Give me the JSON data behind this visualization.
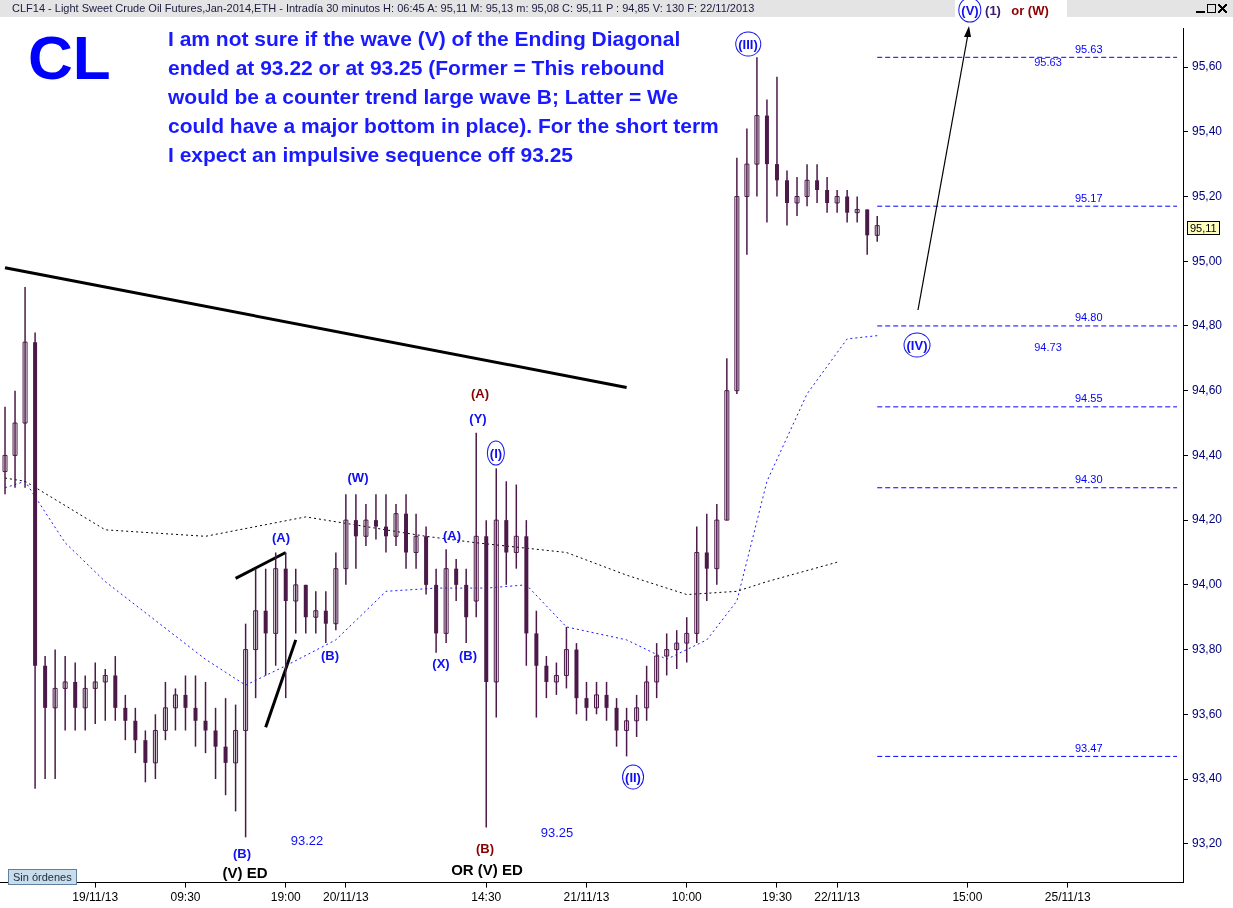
{
  "chart_data": {
    "type": "candlestick",
    "title": "CLF14 - Light Sweet Crude Oil Futures,Jan-2014,ETH - Intradía 30 minutos  H: 06:45  A: 95,11  M: 95,13  m: 95,08  C: 95,11  P : 94,85  V: 130  F: 22/11/2013",
    "color": "#4b1a48",
    "categories": [
      null,
      null,
      null,
      null,
      null,
      null,
      null,
      null,
      null,
      "19/11/13",
      null,
      null,
      null,
      null,
      null,
      null,
      null,
      null,
      "09:30",
      null,
      null,
      null,
      null,
      null,
      null,
      null,
      null,
      null,
      "19:00",
      null,
      null,
      null,
      null,
      null,
      "20/11/13",
      null,
      null,
      null,
      null,
      null,
      null,
      null,
      null,
      null,
      null,
      null,
      null,
      null,
      "14:30",
      null,
      null,
      null,
      null,
      null,
      null,
      null,
      null,
      null,
      "21/11/13",
      null,
      null,
      null,
      null,
      null,
      null,
      null,
      null,
      null,
      "10:00",
      null,
      null,
      null,
      null,
      null,
      null,
      null,
      null,
      "19:30",
      null,
      null,
      null,
      null,
      null,
      "22/11/13",
      null,
      null,
      null,
      null,
      null,
      null,
      null,
      null,
      null,
      null,
      null,
      null,
      "15:00",
      null,
      null,
      null,
      null,
      null,
      null,
      null,
      null,
      null,
      "25/11/13",
      null,
      null,
      null,
      null,
      null,
      null,
      null,
      null,
      null,
      null,
      null
    ],
    "ohlc": [
      [
        94.35,
        94.55,
        94.28,
        94.4
      ],
      [
        94.4,
        94.6,
        94.3,
        94.5
      ],
      [
        94.5,
        94.92,
        94.3,
        94.75
      ],
      [
        94.75,
        94.78,
        93.37,
        93.75
      ],
      [
        93.75,
        93.78,
        93.4,
        93.62
      ],
      [
        93.62,
        93.8,
        93.4,
        93.68
      ],
      [
        93.68,
        93.78,
        93.55,
        93.7
      ],
      [
        93.7,
        93.76,
        93.55,
        93.62
      ],
      [
        93.62,
        93.72,
        93.55,
        93.68
      ],
      [
        93.68,
        93.76,
        93.57,
        93.7
      ],
      [
        93.7,
        93.74,
        93.58,
        93.72
      ],
      [
        93.72,
        93.78,
        93.58,
        93.62
      ],
      [
        93.62,
        93.66,
        93.52,
        93.58
      ],
      [
        93.58,
        93.62,
        93.48,
        93.52
      ],
      [
        93.52,
        93.55,
        93.39,
        93.45
      ],
      [
        93.45,
        93.6,
        93.4,
        93.55
      ],
      [
        93.55,
        93.7,
        93.52,
        93.62
      ],
      [
        93.62,
        93.68,
        93.55,
        93.66
      ],
      [
        93.66,
        93.72,
        93.55,
        93.62
      ],
      [
        93.62,
        93.72,
        93.5,
        93.58
      ],
      [
        93.58,
        93.7,
        93.48,
        93.55
      ],
      [
        93.55,
        93.62,
        93.4,
        93.5
      ],
      [
        93.5,
        93.65,
        93.35,
        93.45
      ],
      [
        93.45,
        93.63,
        93.3,
        93.55
      ],
      [
        93.55,
        93.88,
        93.22,
        93.8
      ],
      [
        93.8,
        94.05,
        93.65,
        93.92
      ],
      [
        93.92,
        94.05,
        93.72,
        93.85
      ],
      [
        93.85,
        94.1,
        93.75,
        94.05
      ],
      [
        94.05,
        94.1,
        93.65,
        93.95
      ],
      [
        93.95,
        94.05,
        93.85,
        94.0
      ],
      [
        94.0,
        94.0,
        93.85,
        93.9
      ],
      [
        93.9,
        93.98,
        93.85,
        93.92
      ],
      [
        93.92,
        93.98,
        93.82,
        93.88
      ],
      [
        93.88,
        94.1,
        93.86,
        94.05
      ],
      [
        94.05,
        94.28,
        94.0,
        94.2
      ],
      [
        94.2,
        94.28,
        94.05,
        94.15
      ],
      [
        94.15,
        94.25,
        94.12,
        94.2
      ],
      [
        94.2,
        94.28,
        94.14,
        94.18
      ],
      [
        94.18,
        94.28,
        94.1,
        94.15
      ],
      [
        94.15,
        94.25,
        94.12,
        94.22
      ],
      [
        94.22,
        94.28,
        94.05,
        94.1
      ],
      [
        94.1,
        94.22,
        94.05,
        94.15
      ],
      [
        94.15,
        94.18,
        93.97,
        94.0
      ],
      [
        94.0,
        94.05,
        93.79,
        93.85
      ],
      [
        93.85,
        94.11,
        93.82,
        94.05
      ],
      [
        94.05,
        94.08,
        93.95,
        94.0
      ],
      [
        94.0,
        94.05,
        93.82,
        93.9
      ],
      [
        93.95,
        94.47,
        93.9,
        94.15
      ],
      [
        94.15,
        94.2,
        93.25,
        93.7
      ],
      [
        93.7,
        94.36,
        93.59,
        94.2
      ],
      [
        94.2,
        94.32,
        94.0,
        94.1
      ],
      [
        94.1,
        94.31,
        94.05,
        94.15
      ],
      [
        94.15,
        94.2,
        93.75,
        93.85
      ],
      [
        93.85,
        93.92,
        93.59,
        93.75
      ],
      [
        93.75,
        93.78,
        93.65,
        93.7
      ],
      [
        93.7,
        93.76,
        93.66,
        93.72
      ],
      [
        93.72,
        93.87,
        93.68,
        93.8
      ],
      [
        93.8,
        93.82,
        93.6,
        93.65
      ],
      [
        93.65,
        93.7,
        93.58,
        93.62
      ],
      [
        93.62,
        93.7,
        93.6,
        93.66
      ],
      [
        93.66,
        93.7,
        93.58,
        93.62
      ],
      [
        93.62,
        93.65,
        93.5,
        93.55
      ],
      [
        93.55,
        93.62,
        93.47,
        93.58
      ],
      [
        93.58,
        93.66,
        93.53,
        93.62
      ],
      [
        93.62,
        93.75,
        93.58,
        93.7
      ],
      [
        93.7,
        93.82,
        93.65,
        93.78
      ],
      [
        93.78,
        93.85,
        93.72,
        93.8
      ],
      [
        93.8,
        93.86,
        93.74,
        93.82
      ],
      [
        93.82,
        93.9,
        93.76,
        93.85
      ],
      [
        93.85,
        94.18,
        93.82,
        94.1
      ],
      [
        94.1,
        94.22,
        93.95,
        94.05
      ],
      [
        94.05,
        94.25,
        94.0,
        94.2
      ],
      [
        94.2,
        94.7,
        94.2,
        94.6
      ],
      [
        94.6,
        95.32,
        94.59,
        95.2
      ],
      [
        95.2,
        95.41,
        95.02,
        95.3
      ],
      [
        95.3,
        95.63,
        95.2,
        95.45
      ],
      [
        95.45,
        95.5,
        95.12,
        95.3
      ],
      [
        95.3,
        95.57,
        95.2,
        95.25
      ],
      [
        95.25,
        95.28,
        95.11,
        95.18
      ],
      [
        95.18,
        95.26,
        95.14,
        95.2
      ],
      [
        95.2,
        95.3,
        95.17,
        95.25
      ],
      [
        95.25,
        95.3,
        95.18,
        95.22
      ],
      [
        95.22,
        95.26,
        95.15,
        95.18
      ],
      [
        95.18,
        95.22,
        95.15,
        95.2
      ],
      [
        95.2,
        95.22,
        95.12,
        95.15
      ],
      [
        95.15,
        95.2,
        95.12,
        95.16
      ],
      [
        95.16,
        95.16,
        95.02,
        95.08
      ],
      [
        95.08,
        95.14,
        95.06,
        95.11
      ],
      null,
      null,
      null,
      null,
      null,
      null,
      null,
      null,
      null,
      null,
      null,
      null,
      null,
      null,
      null,
      null,
      null,
      null,
      null,
      null,
      null,
      null,
      null,
      null,
      null,
      null,
      null,
      null,
      null,
      null
    ],
    "series": [
      {
        "type": "line",
        "color": "#000000",
        "line_style": "dotted",
        "values": [
          94.33,
          null,
          94.32,
          null,
          null,
          null,
          null,
          null,
          null,
          null,
          94.17,
          null,
          null,
          null,
          null,
          null,
          null,
          null,
          null,
          null,
          94.15,
          null,
          null,
          null,
          null,
          null,
          null,
          null,
          null,
          null,
          94.21,
          null,
          null,
          null,
          null,
          null,
          null,
          null,
          null,
          null,
          null,
          null,
          94.15,
          null,
          null,
          null,
          null,
          94.13,
          null,
          null,
          null,
          null,
          null,
          null,
          null,
          null,
          94.1,
          null,
          null,
          null,
          null,
          null,
          94.03,
          null,
          null,
          null,
          null,
          null,
          93.97,
          null,
          null,
          null,
          null,
          93.98,
          null,
          null,
          94.01,
          null,
          null,
          null,
          null,
          null,
          null,
          94.07,
          null,
          null,
          null,
          null,
          null,
          null,
          null,
          null,
          null,
          null,
          null,
          null,
          null,
          null,
          null,
          null,
          null,
          null,
          null,
          null,
          null,
          null,
          null,
          null,
          null,
          null,
          null,
          null,
          null,
          null,
          null,
          null,
          null,
          null
        ]
      },
      {
        "type": "line",
        "color": "#1a1aff",
        "line_style": "dotted",
        "values": [
          94.3,
          null,
          94.32,
          null,
          null,
          null,
          94.13,
          null,
          null,
          null,
          94.01,
          null,
          null,
          null,
          null,
          93.89,
          null,
          null,
          null,
          null,
          93.77,
          null,
          null,
          null,
          93.69,
          null,
          null,
          null,
          93.75,
          null,
          null,
          null,
          null,
          93.83,
          null,
          null,
          null,
          null,
          93.98,
          null,
          null,
          null,
          null,
          93.99,
          null,
          null,
          null,
          null,
          93.99,
          null,
          null,
          null,
          94.0,
          null,
          null,
          null,
          93.87,
          null,
          null,
          null,
          null,
          null,
          93.83,
          null,
          null,
          null,
          93.77,
          null,
          null,
          null,
          93.83,
          null,
          null,
          93.95,
          null,
          null,
          94.32,
          null,
          null,
          null,
          94.59,
          null,
          null,
          null,
          94.76,
          null,
          null,
          94.77,
          null,
          null,
          null,
          null,
          null,
          null,
          null,
          null,
          null,
          null,
          null,
          null,
          null,
          null,
          null,
          null,
          null,
          null,
          null,
          null,
          null,
          null,
          null,
          null,
          null,
          null,
          null,
          null,
          null,
          null
        ]
      },
      {
        "type": "line",
        "color": "#000000",
        "line_style": "solid",
        "values": [
          94.98,
          null,
          null,
          null,
          null,
          null,
          null,
          null,
          null,
          null,
          null,
          null,
          null,
          null,
          null,
          null,
          null,
          null,
          null,
          null,
          null,
          null,
          null,
          null,
          null,
          null,
          null,
          null,
          null,
          null,
          null,
          null,
          null,
          null,
          null,
          null,
          null,
          null,
          null,
          null,
          null,
          null,
          null,
          null,
          null,
          null,
          null,
          null,
          null,
          null,
          null,
          null,
          null,
          null,
          null,
          null,
          null,
          null,
          null,
          null,
          null,
          null,
          94.61,
          null,
          null,
          null,
          null,
          null,
          null,
          null,
          null,
          null,
          null,
          null,
          null,
          null,
          null,
          null,
          null,
          null,
          null,
          null,
          null,
          null,
          null,
          null,
          null,
          null,
          null,
          null,
          null,
          null,
          null,
          null,
          null,
          null,
          null,
          null,
          null,
          null,
          null,
          null,
          null,
          null,
          null,
          null,
          null,
          null,
          null,
          null,
          null,
          null,
          null,
          null,
          null,
          null,
          null,
          null
        ]
      },
      {
        "type": "line",
        "color": "#000000",
        "line_style": "solid",
        "values": [
          null,
          null,
          null,
          null,
          null,
          null,
          null,
          null,
          null,
          null,
          null,
          null,
          null,
          null,
          null,
          null,
          null,
          null,
          null,
          null,
          null,
          null,
          null,
          94.02,
          null,
          null,
          null,
          null,
          94.1,
          null,
          null,
          null,
          null,
          null,
          null,
          null,
          null,
          null,
          null,
          null,
          null,
          null,
          null,
          null,
          null,
          null,
          null,
          null,
          null,
          null,
          null,
          null,
          null,
          null,
          null,
          null,
          null,
          null,
          null,
          null,
          null,
          null,
          null,
          null,
          null,
          null,
          null,
          null,
          null,
          null,
          null,
          null,
          null,
          null,
          null,
          null,
          null,
          null,
          null,
          null,
          null,
          null,
          null,
          null,
          null,
          null,
          null,
          null,
          null,
          null,
          null,
          null,
          null,
          null,
          null,
          null,
          null,
          null,
          null,
          null,
          null,
          null,
          null,
          null,
          null,
          null,
          null,
          null,
          null,
          null,
          null,
          null,
          null,
          null,
          null,
          null,
          null,
          null
        ]
      },
      {
        "type": "line",
        "color": "#000000",
        "line_style": "solid",
        "values": [
          null,
          null,
          null,
          null,
          null,
          null,
          null,
          null,
          null,
          null,
          null,
          null,
          null,
          null,
          null,
          null,
          null,
          null,
          null,
          null,
          null,
          null,
          null,
          null,
          null,
          null,
          93.56,
          null,
          null,
          93.83,
          null,
          null,
          null,
          null,
          null,
          null,
          null,
          null,
          null,
          null,
          null,
          null,
          null,
          null,
          null,
          null,
          null,
          null,
          null,
          null,
          null,
          null,
          null,
          null,
          null,
          null,
          null,
          null,
          null,
          null,
          null,
          null,
          null,
          null,
          null,
          null,
          null,
          null,
          null,
          null,
          null,
          null,
          null,
          null,
          null,
          null,
          null,
          null,
          null,
          null,
          null,
          null,
          null,
          null,
          null,
          null,
          null,
          null,
          null,
          null,
          null,
          null,
          null,
          null,
          null,
          null,
          null,
          null,
          null,
          null,
          null,
          null,
          null,
          null,
          null,
          null,
          null,
          null,
          null,
          null,
          null,
          null,
          null,
          null,
          null,
          null,
          null,
          null
        ]
      }
    ],
    "ylim": [
      93.08,
      95.72
    ],
    "yticks": [
      {
        "value": 93.2,
        "label": "93,20"
      },
      {
        "value": 93.4,
        "label": "93,40"
      },
      {
        "value": 93.6,
        "label": "93,60"
      },
      {
        "value": 93.8,
        "label": "93,80"
      },
      {
        "value": 94.0,
        "label": "94,00"
      },
      {
        "value": 94.2,
        "label": "94,20"
      },
      {
        "value": 94.4,
        "label": "94,40"
      },
      {
        "value": 94.6,
        "label": "94,60"
      },
      {
        "value": 94.8,
        "label": "94,80"
      },
      {
        "value": 95.0,
        "label": "95,00"
      },
      {
        "value": 95.2,
        "label": "95,20"
      },
      {
        "value": 95.4,
        "label": "95,40"
      },
      {
        "value": 95.6,
        "label": "95,60"
      }
    ],
    "ref_lines": [
      {
        "axis": "y",
        "value": 95.63,
        "label": "95.63",
        "color": "#0000ff",
        "line_style": "dashed"
      },
      {
        "axis": "y",
        "value": 95.17,
        "label": "95.17",
        "color": "#0000ff",
        "line_style": "dashed"
      },
      {
        "axis": "y",
        "value": 94.8,
        "label": "94.80",
        "color": "#0000ff",
        "line_style": "dashed"
      },
      {
        "axis": "y",
        "value": 94.55,
        "label": "94.55",
        "color": "#0000ff",
        "line_style": "dashed"
      },
      {
        "axis": "y",
        "value": 94.3,
        "label": "94.30",
        "color": "#0000ff",
        "line_style": "dashed"
      },
      {
        "axis": "y",
        "value": 93.47,
        "label": "93.47",
        "color": "#0000ff",
        "line_style": "dashed"
      }
    ],
    "annotations": [
      "CL",
      "I am not sure if the wave (V) of the Ending Diagonal ended at 93.22 or at 93.25 (Former = This rebound would be a counter trend large wave B; Latter = We could have a major bottom in place). For the short term I expect an impulsive sequence off 93.25",
      "Sin órdenes",
      "95,11",
      "(B)",
      "(V) ED",
      "93.22",
      "(A)",
      "(B)",
      "(W)",
      "(X)",
      "(A)",
      "(B)",
      "(Y)",
      "(A)",
      "(I)",
      "93.25",
      "(B)",
      "OR (V) ED",
      "(II)",
      "(III)",
      "(IV)",
      "(V)",
      "(1)",
      "or (W)",
      "95.63",
      "94.73"
    ]
  }
}
